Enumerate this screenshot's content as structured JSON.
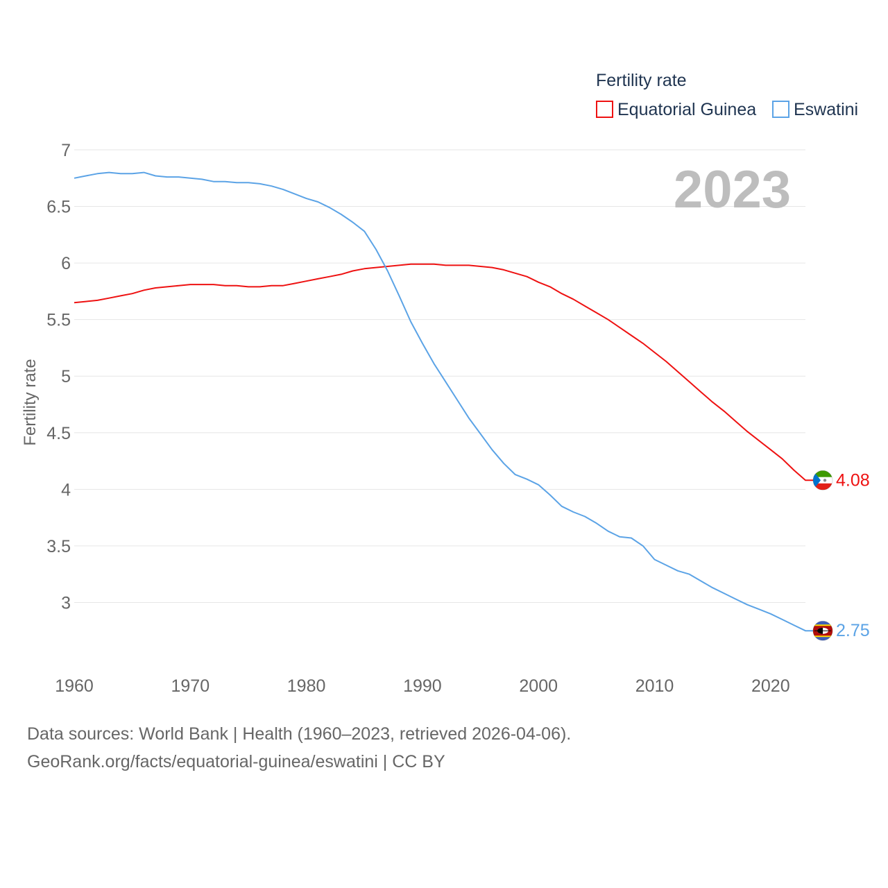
{
  "chart_data": {
    "type": "line",
    "title": "",
    "legend_title": "Fertility rate",
    "ylabel": "Fertility rate",
    "xlabel": "",
    "year_label": "2023",
    "xlim": [
      1960,
      2023
    ],
    "ylim": [
      2.5,
      7
    ],
    "x_ticks": [
      1960,
      1970,
      1980,
      1990,
      2000,
      2010,
      2020
    ],
    "y_ticks": [
      3,
      3.5,
      4,
      4.5,
      5,
      5.5,
      6,
      6.5,
      7
    ],
    "y_tick_labels": [
      "3",
      "3.5",
      "4",
      "4.5",
      "5",
      "5.5",
      "6",
      "6.5",
      "7"
    ],
    "grid": true,
    "legend_position": "top-right",
    "x": [
      1960,
      1961,
      1962,
      1963,
      1964,
      1965,
      1966,
      1967,
      1968,
      1969,
      1970,
      1971,
      1972,
      1973,
      1974,
      1975,
      1976,
      1977,
      1978,
      1979,
      1980,
      1981,
      1982,
      1983,
      1984,
      1985,
      1986,
      1987,
      1988,
      1989,
      1990,
      1991,
      1992,
      1993,
      1994,
      1995,
      1996,
      1997,
      1998,
      1999,
      2000,
      2001,
      2002,
      2003,
      2004,
      2005,
      2006,
      2007,
      2008,
      2009,
      2010,
      2011,
      2012,
      2013,
      2014,
      2015,
      2016,
      2017,
      2018,
      2019,
      2020,
      2021,
      2022,
      2023
    ],
    "series": [
      {
        "name": "Equatorial Guinea",
        "color": "#ee1111",
        "end_label": "4.08",
        "flag": "equatorial-guinea-flag-icon",
        "values": [
          5.65,
          5.66,
          5.67,
          5.69,
          5.71,
          5.73,
          5.76,
          5.78,
          5.79,
          5.8,
          5.81,
          5.81,
          5.81,
          5.8,
          5.8,
          5.79,
          5.79,
          5.8,
          5.8,
          5.82,
          5.84,
          5.86,
          5.88,
          5.9,
          5.93,
          5.95,
          5.96,
          5.97,
          5.98,
          5.99,
          5.99,
          5.99,
          5.98,
          5.98,
          5.98,
          5.97,
          5.96,
          5.94,
          5.91,
          5.88,
          5.83,
          5.79,
          5.73,
          5.68,
          5.62,
          5.56,
          5.5,
          5.43,
          5.36,
          5.29,
          5.21,
          5.13,
          5.04,
          4.95,
          4.86,
          4.77,
          4.69,
          4.6,
          4.51,
          4.43,
          4.35,
          4.27,
          4.17,
          4.08
        ]
      },
      {
        "name": "Eswatini",
        "color": "#5ba3e6",
        "end_label": "2.75",
        "flag": "eswatini-flag-icon",
        "values": [
          6.75,
          6.77,
          6.79,
          6.8,
          6.79,
          6.79,
          6.8,
          6.77,
          6.76,
          6.76,
          6.75,
          6.74,
          6.72,
          6.72,
          6.71,
          6.71,
          6.7,
          6.68,
          6.65,
          6.61,
          6.57,
          6.54,
          6.49,
          6.43,
          6.36,
          6.28,
          6.12,
          5.93,
          5.71,
          5.48,
          5.29,
          5.11,
          4.95,
          4.79,
          4.63,
          4.49,
          4.35,
          4.23,
          4.13,
          4.09,
          4.04,
          3.95,
          3.85,
          3.8,
          3.76,
          3.7,
          3.63,
          3.58,
          3.57,
          3.5,
          3.38,
          3.33,
          3.28,
          3.25,
          3.19,
          3.13,
          3.08,
          3.03,
          2.98,
          2.94,
          2.9,
          2.85,
          2.8,
          2.75
        ]
      }
    ]
  },
  "footer": {
    "sources": "Data sources: World Bank | Health (1960–2023, retrieved 2026-04-06).",
    "attribution": "GeoRank.org/facts/equatorial-guinea/eswatini | CC BY"
  },
  "colors": {
    "grid": "#e6e6e6",
    "tick_text": "#666666",
    "legend_text": "#1f3450",
    "year_watermark": "#bdbdbd"
  }
}
